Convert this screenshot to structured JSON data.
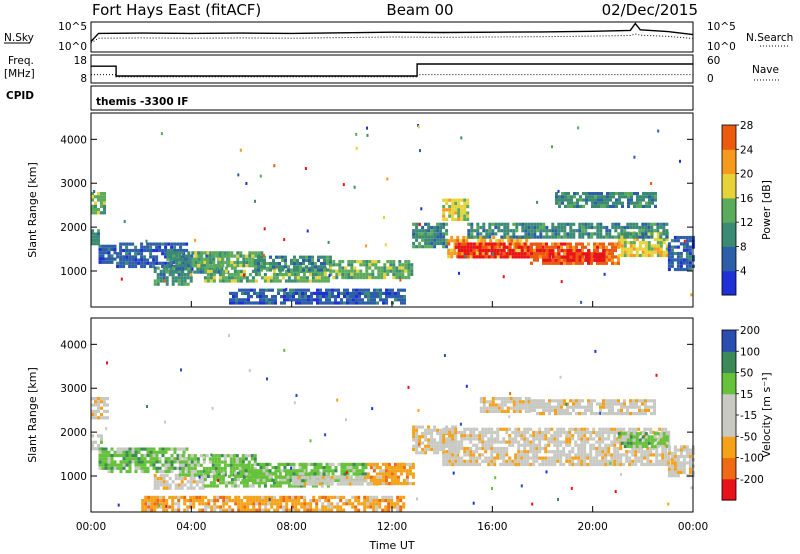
{
  "header": {
    "radar": "Fort Hays East (fitACF)",
    "beam": "Beam 00",
    "date": "02/Dec/2015"
  },
  "colors": {
    "power": [
      "#1f31d6",
      "#2d5fa8",
      "#3b8a74",
      "#5aab5a",
      "#e6d33a",
      "#f59a1c",
      "#ec5a10",
      "#e8131a"
    ],
    "velocity": [
      "#e8131a",
      "#f06a14",
      "#f5a218",
      "#c9c9c4",
      "#c9c9c4",
      "#66c23a",
      "#3b8a58",
      "#2a4eb0",
      "#1f31d6"
    ],
    "gray": "#c9c9c4"
  },
  "chart_data": [
    {
      "type": "line",
      "panel": "noise",
      "left_label": "N.Sky",
      "right_label": "N.Search",
      "left_ticks": [
        "10^5",
        "10^0"
      ],
      "right_ticks": [
        "10^5",
        "10^0"
      ],
      "x_hours": [
        0,
        0.3,
        2,
        4,
        6,
        8,
        10,
        12,
        14,
        16,
        18,
        20,
        21.5,
        21.7,
        21.9,
        23,
        24
      ],
      "sky_level": [
        0.35,
        0.62,
        0.63,
        0.62,
        0.63,
        0.62,
        0.64,
        0.66,
        0.65,
        0.66,
        0.67,
        0.69,
        0.72,
        0.95,
        0.74,
        0.68,
        0.58
      ],
      "search_level": [
        0.3,
        0.46,
        0.47,
        0.46,
        0.47,
        0.46,
        0.48,
        0.5,
        0.49,
        0.5,
        0.51,
        0.53,
        0.55,
        0.6,
        0.56,
        0.52,
        0.45
      ]
    },
    {
      "type": "line",
      "panel": "frequency",
      "left_label_line1": "Freq.",
      "left_label_line2": "[MHz]",
      "right_label": "Nave",
      "left_ticks": [
        "18",
        "8"
      ],
      "right_ticks": [
        "60",
        "0"
      ],
      "freq_steps": [
        {
          "from": 0,
          "to": 1,
          "mhz": 14
        },
        {
          "from": 1,
          "to": 13,
          "mhz": 10.5
        },
        {
          "from": 13,
          "to": 24,
          "mhz": 14.8
        }
      ],
      "nave_steps": [
        {
          "from": 0,
          "to": 1,
          "value": 18
        },
        {
          "from": 1,
          "to": 13,
          "value": 13
        },
        {
          "from": 13,
          "to": 24,
          "value": 18
        }
      ],
      "freq_range": [
        8,
        18
      ],
      "nave_range": [
        0,
        60
      ]
    },
    {
      "type": "label",
      "panel": "cpid",
      "left_label": "CPID",
      "program": "themis -3300 IF"
    },
    {
      "type": "heatmap",
      "panel": "power",
      "ylabel": "Slant Range [km]",
      "y_ticks": [
        1000,
        2000,
        3000,
        4000
      ],
      "ylim": [
        180,
        4600
      ],
      "xlim": [
        0,
        24
      ],
      "colorbar_label": "Power [dB]",
      "colorbar_ticks": [
        "4",
        "8",
        "12",
        "16",
        "20",
        "24",
        "28"
      ],
      "regions": [
        {
          "t0": 0,
          "t1": 0.5,
          "r0": 2350,
          "r1": 2800,
          "level": 3
        },
        {
          "t0": 0,
          "t1": 0.3,
          "r0": 1650,
          "r1": 1950,
          "level": 2
        },
        {
          "t0": 0.3,
          "t1": 1.0,
          "r0": 1200,
          "r1": 1600,
          "level": 1
        },
        {
          "t0": 1.0,
          "t1": 3.8,
          "r0": 1100,
          "r1": 1650,
          "level": 1
        },
        {
          "t0": 2.5,
          "t1": 4.0,
          "r0": 700,
          "r1": 1100,
          "level": 2
        },
        {
          "t0": 3.0,
          "t1": 5.5,
          "r0": 1000,
          "r1": 1450,
          "level": 2
        },
        {
          "t0": 4.0,
          "t1": 6.8,
          "r0": 1150,
          "r1": 1450,
          "level": 3
        },
        {
          "t0": 4.5,
          "t1": 9.5,
          "r0": 750,
          "r1": 1100,
          "level": 3
        },
        {
          "t0": 6.5,
          "t1": 9.5,
          "r0": 1050,
          "r1": 1350,
          "level": 2
        },
        {
          "t0": 9.5,
          "t1": 12.8,
          "r0": 850,
          "r1": 1250,
          "level": 3
        },
        {
          "t0": 5.5,
          "t1": 12.5,
          "r0": 250,
          "r1": 600,
          "level": 1
        },
        {
          "t0": 12.8,
          "t1": 14.2,
          "r0": 1550,
          "r1": 2100,
          "level": 2
        },
        {
          "t0": 14.0,
          "t1": 15.0,
          "r0": 2150,
          "r1": 2650,
          "level": 4
        },
        {
          "t0": 14.2,
          "t1": 17.5,
          "r0": 1300,
          "r1": 1800,
          "level": 5
        },
        {
          "t0": 14.5,
          "t1": 18.0,
          "r0": 1350,
          "r1": 1650,
          "level": 7
        },
        {
          "t0": 17.5,
          "t1": 21.0,
          "r0": 1200,
          "r1": 1650,
          "level": 6
        },
        {
          "t0": 18.0,
          "t1": 20.5,
          "r0": 1250,
          "r1": 1500,
          "level": 7
        },
        {
          "t0": 21.0,
          "t1": 23.0,
          "r0": 1350,
          "r1": 1900,
          "level": 4
        },
        {
          "t0": 15.0,
          "t1": 23.0,
          "r0": 1800,
          "r1": 2100,
          "level": 2
        },
        {
          "t0": 18.5,
          "t1": 22.5,
          "r0": 2450,
          "r1": 2800,
          "level": 2
        },
        {
          "t0": 23.0,
          "t1": 24.0,
          "r0": 1000,
          "r1": 1800,
          "level": 1
        }
      ]
    },
    {
      "type": "heatmap",
      "panel": "velocity",
      "ylabel": "Slant Range [km]",
      "xlabel": "Time UT",
      "y_ticks": [
        1000,
        2000,
        3000,
        4000
      ],
      "ylim": [
        180,
        4600
      ],
      "xlim": [
        0,
        24
      ],
      "x_ticks": [
        "00:00",
        "04:00",
        "08:00",
        "12:00",
        "16:00",
        "20:00",
        "00:00"
      ],
      "colorbar_label": "Velocity [m s⁻¹]",
      "colorbar_ticks": [
        "-200",
        "-100",
        "-50",
        "-15",
        "15",
        "50",
        "100",
        "200"
      ],
      "regions": [
        {
          "t0": 0,
          "t1": 0.6,
          "r0": 2300,
          "r1": 2800,
          "level": 3
        },
        {
          "t0": 0,
          "t1": 0.4,
          "r0": 1650,
          "r1": 1950,
          "level": 4
        },
        {
          "t0": 0.3,
          "t1": 3.8,
          "r0": 1100,
          "r1": 1650,
          "level": 5
        },
        {
          "t0": 2.5,
          "t1": 4.5,
          "r0": 700,
          "r1": 1050,
          "level": 3
        },
        {
          "t0": 3.5,
          "t1": 6.5,
          "r0": 1050,
          "r1": 1500,
          "level": 5
        },
        {
          "t0": 4.5,
          "t1": 9.5,
          "r0": 750,
          "r1": 1100,
          "level": 5
        },
        {
          "t0": 6.0,
          "t1": 11.0,
          "r0": 900,
          "r1": 1300,
          "level": 5
        },
        {
          "t0": 8.0,
          "t1": 11.5,
          "r0": 800,
          "r1": 1000,
          "level": 3
        },
        {
          "t0": 11.0,
          "t1": 12.9,
          "r0": 850,
          "r1": 1300,
          "level": 2
        },
        {
          "t0": 2.0,
          "t1": 12.5,
          "r0": 250,
          "r1": 550,
          "level": 2
        },
        {
          "t0": 12.8,
          "t1": 14.5,
          "r0": 1550,
          "r1": 2150,
          "level": 3
        },
        {
          "t0": 14.0,
          "t1": 23.0,
          "r0": 1250,
          "r1": 2100,
          "level": 3
        },
        {
          "t0": 15.5,
          "t1": 17.5,
          "r0": 2450,
          "r1": 2800,
          "level": 3
        },
        {
          "t0": 17.5,
          "t1": 22.5,
          "r0": 2400,
          "r1": 2750,
          "level": 3
        },
        {
          "t0": 21.0,
          "t1": 23.0,
          "r0": 1650,
          "r1": 2000,
          "level": 5
        },
        {
          "t0": 23.0,
          "t1": 24.0,
          "r0": 1000,
          "r1": 1700,
          "level": 3
        }
      ]
    }
  ]
}
